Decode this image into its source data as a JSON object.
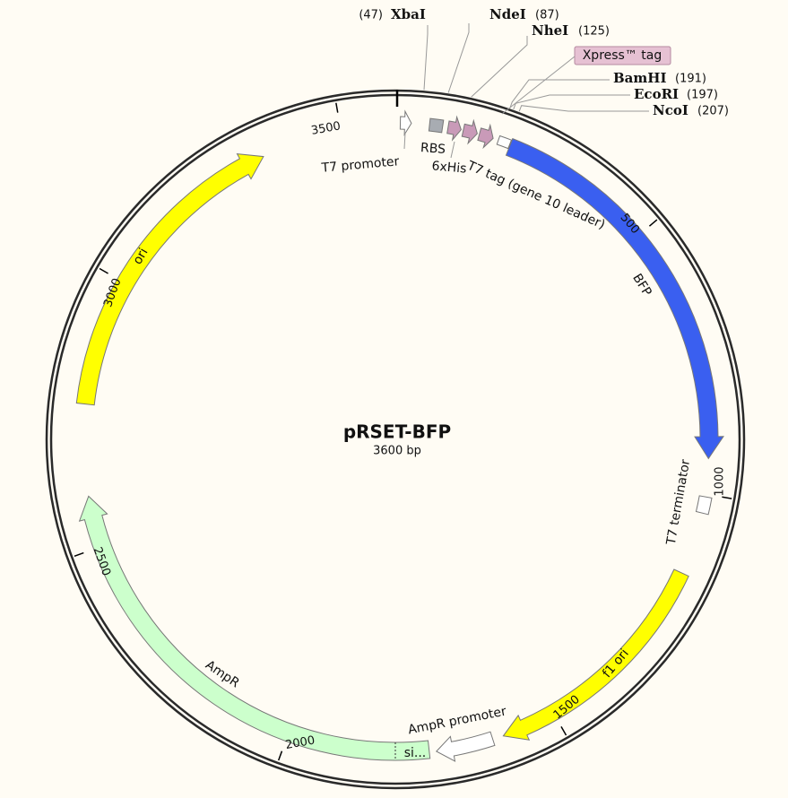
{
  "map": {
    "name": "pRSET-BFP",
    "length": "3600 bp",
    "ticks": [
      500,
      1000,
      1500,
      2000,
      2500,
      3000,
      3500
    ],
    "sites": [
      {
        "name": "XbaI",
        "position": "(47)"
      },
      {
        "name": "NdeI",
        "position": "(87)"
      },
      {
        "name": "NheI",
        "position": "(125)"
      },
      {
        "name": "BamHI",
        "position": "(191)"
      },
      {
        "name": "EcoRI",
        "position": "(197)"
      },
      {
        "name": "NcoI",
        "position": "(207)"
      }
    ],
    "features": [
      {
        "label": "T7 promoter"
      },
      {
        "label": "RBS"
      },
      {
        "label": "6xHis"
      },
      {
        "label": "T7 tag (gene 10 leader)"
      },
      {
        "label": "Xpress™ tag"
      },
      {
        "label": "BFP"
      },
      {
        "label": "T7 terminator"
      },
      {
        "label": "f1 ori"
      },
      {
        "label": "AmpR promoter"
      },
      {
        "label": "AmpR"
      },
      {
        "label": "si..."
      },
      {
        "label": "ori"
      }
    ]
  }
}
